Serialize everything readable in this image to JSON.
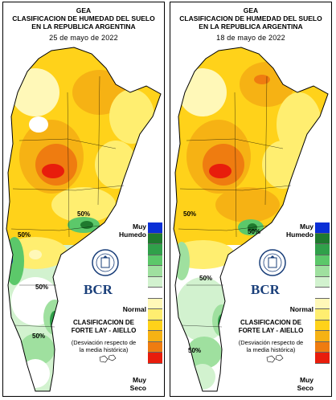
{
  "panels": [
    {
      "title_line1": "GEA",
      "title_line2": "CLASIFICACION DE HUMEDAD DEL SUELO",
      "title_line3": "EN LA REPUBLICA ARGENTINA",
      "date": "25 de mayo de 2022",
      "contour_labels": [
        "50%",
        "50%",
        "50%",
        "50%"
      ]
    },
    {
      "title_line1": "GEA",
      "title_line2": "CLASIFICACION DE HUMEDAD DEL SUELO",
      "title_line3": "EN LA REPUBLICA ARGENTINA",
      "date": "18 de mayo de 2022",
      "contour_labels": [
        "50%",
        "50%",
        "50%",
        "50%"
      ]
    }
  ],
  "legend": {
    "top": "Muy Humedo",
    "middle": "Normal",
    "bottom": "Muy Seco",
    "colors": [
      "#0a2fd6",
      "#1f7a2e",
      "#30a04a",
      "#5cc86a",
      "#9fe09f",
      "#d2f2cf",
      "#ffffff",
      "#fff8b8",
      "#ffee70",
      "#ffd21a",
      "#f6b214",
      "#ef7c10",
      "#e81d0c"
    ]
  },
  "logo": {
    "text": "BCR"
  },
  "caption": {
    "line1": "CLASIFICACION DE",
    "line2": "FORTE LAY - AIELLO",
    "line3": "(Desviación respecto de",
    "line4": "la media histórica)"
  }
}
